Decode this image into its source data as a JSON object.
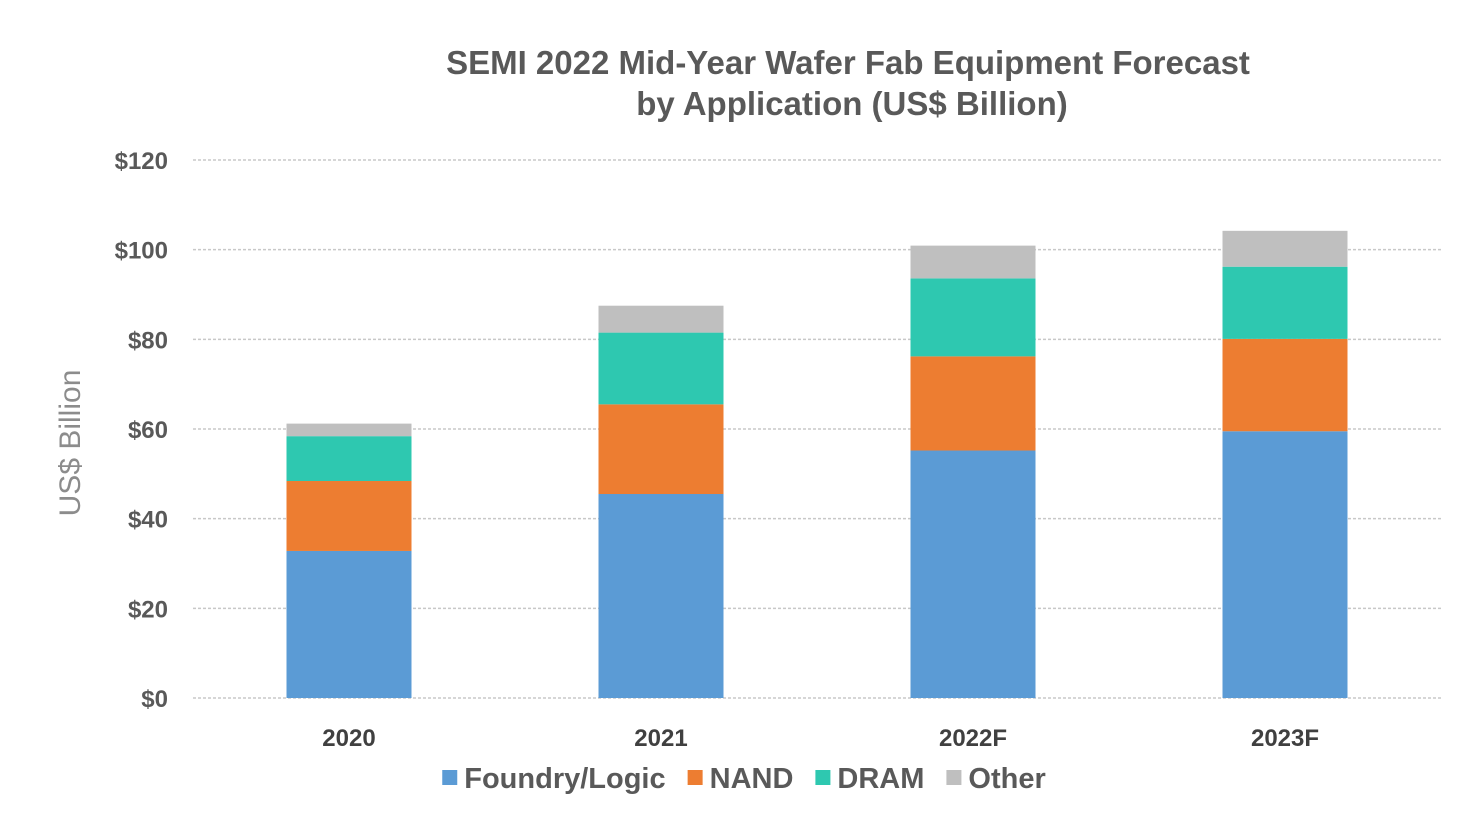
{
  "chart_data": {
    "type": "bar",
    "stacked": true,
    "title_lines": [
      "SEMI 2022 Mid-Year Wafer Fab Equipment Forecast",
      "by Application (US$ Billion)"
    ],
    "ylabel": "US$ Billion",
    "xlabel": "",
    "categories": [
      "2020",
      "2021",
      "2022F",
      "2023F"
    ],
    "ylim": [
      0,
      120
    ],
    "yticks": [
      0,
      20,
      40,
      60,
      80,
      100,
      120
    ],
    "ytick_labels": [
      "$0",
      "$20",
      "$40",
      "$60",
      "$80",
      "$100",
      "$120"
    ],
    "grid": true,
    "legend_position": "bottom",
    "series": [
      {
        "name": "Foundry/Logic",
        "color": "#5b9bd5",
        "values": [
          32.8,
          45.5,
          55.2,
          59.5
        ]
      },
      {
        "name": "NAND",
        "color": "#ed7d31",
        "values": [
          15.6,
          20.0,
          21.0,
          20.6
        ]
      },
      {
        "name": "DRAM",
        "color": "#2ec8b0",
        "values": [
          10.0,
          16.0,
          17.4,
          16.1
        ]
      },
      {
        "name": "Other",
        "color": "#bfbfbf",
        "values": [
          2.8,
          6.0,
          7.3,
          8.0
        ]
      }
    ]
  }
}
